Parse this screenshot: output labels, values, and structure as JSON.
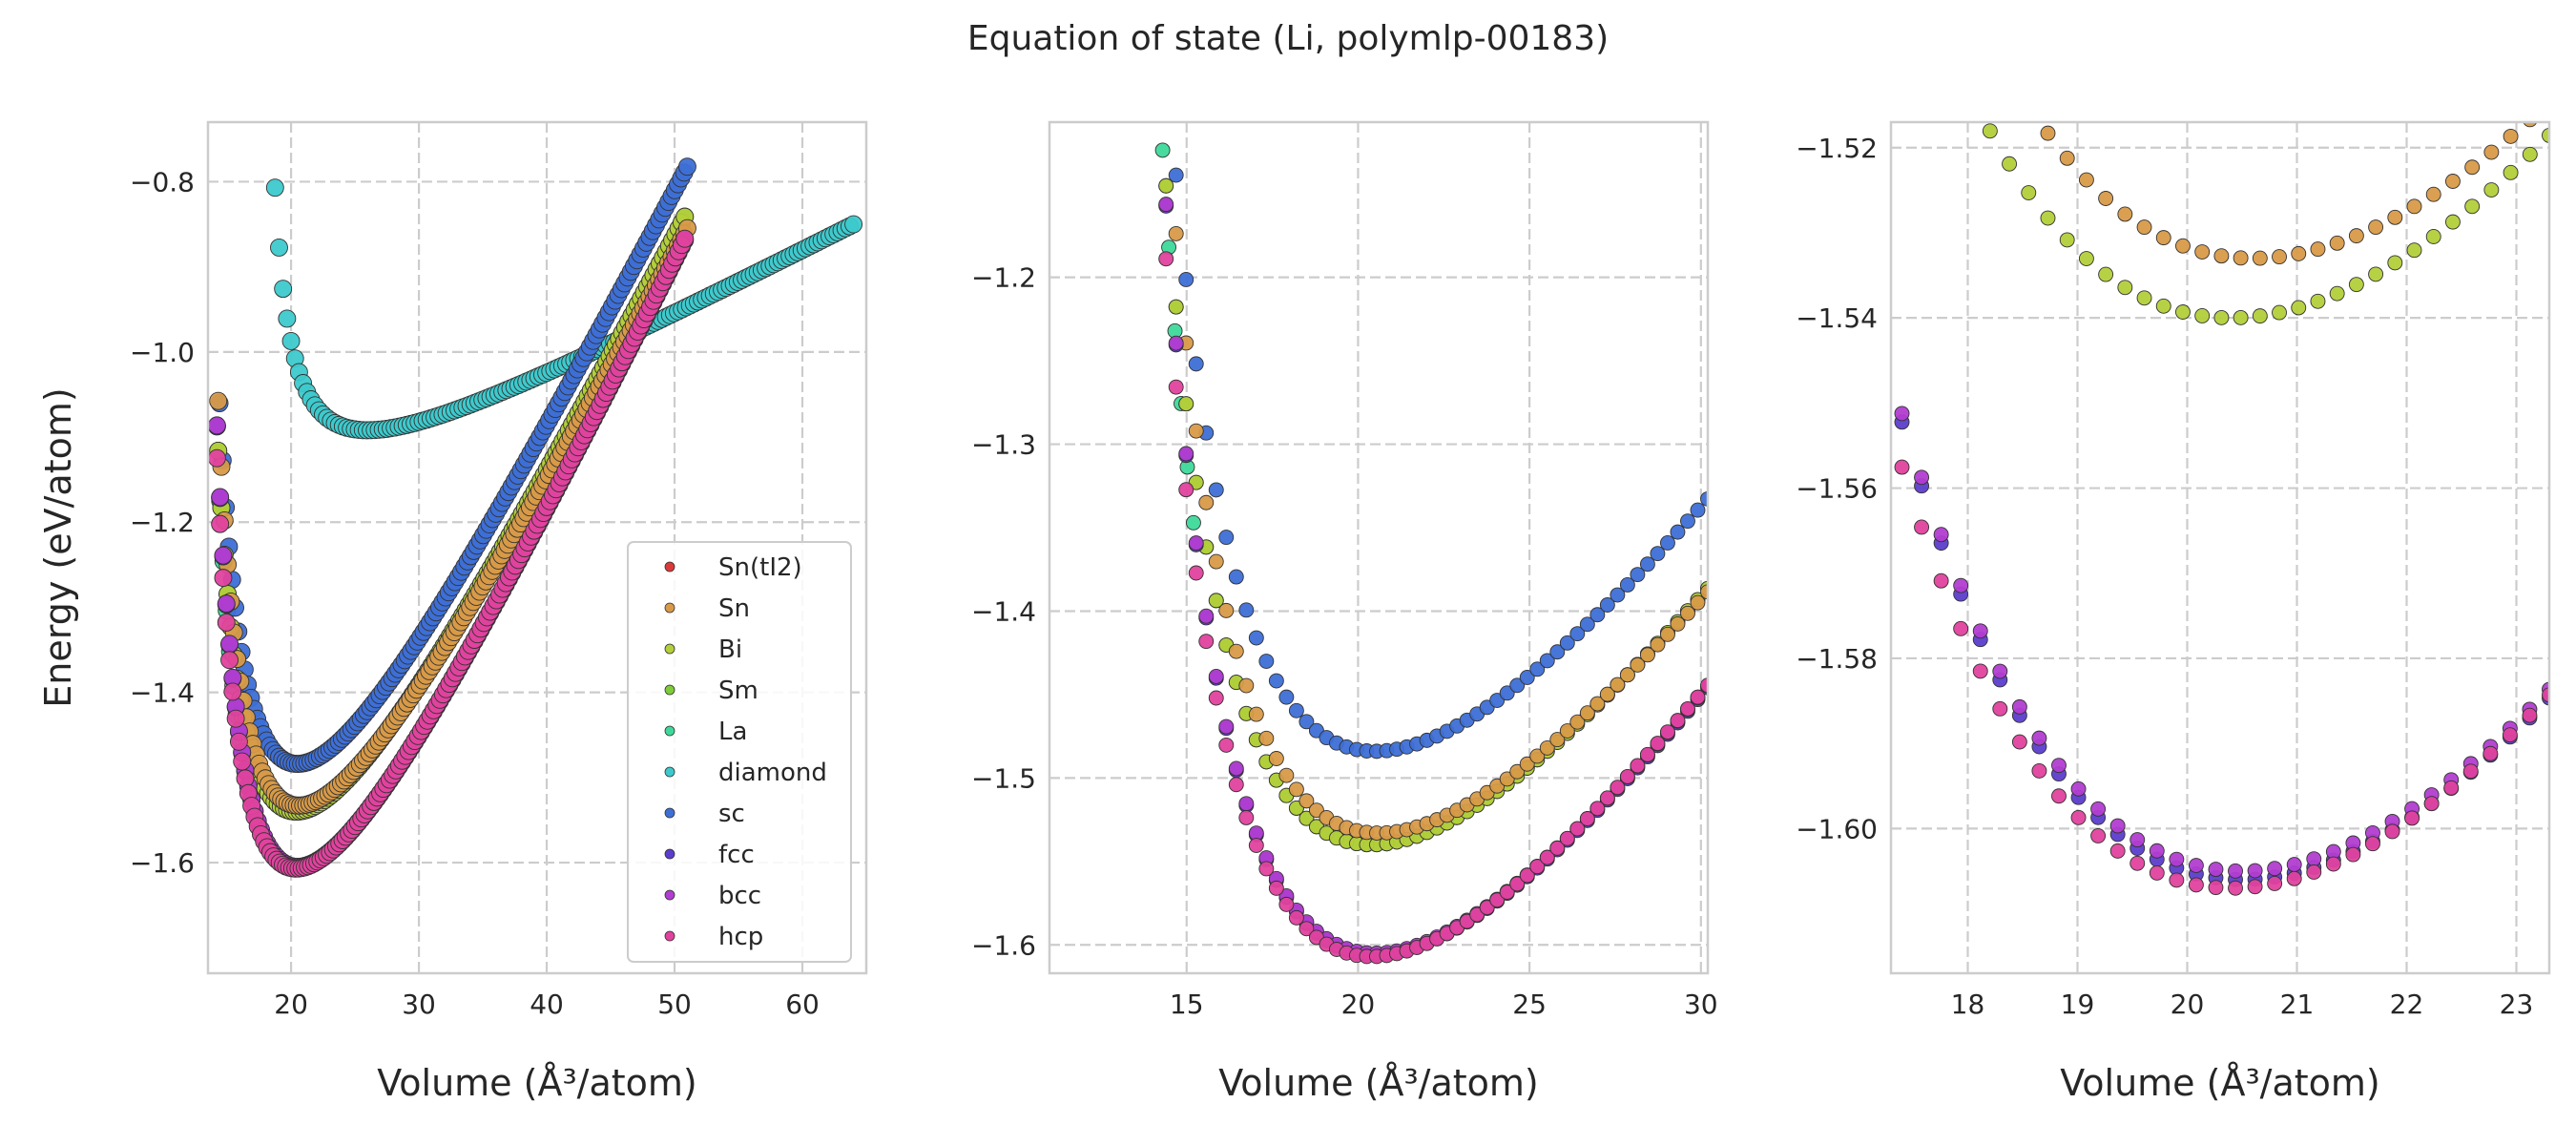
{
  "figure": {
    "title": "Equation of state (Li, polymlp-00183)"
  },
  "colors": {
    "Sn(tI2)": "#db3a3a",
    "Sn": "#d89a48",
    "Bi": "#b3cf3a",
    "Sm": "#7fcc3a",
    "La": "#3ed99a",
    "diamond": "#3dc9cc",
    "sc": "#3d6fd6",
    "fcc": "#5c3dcc",
    "bcc": "#b23dd1",
    "hcp": "#e0429e"
  },
  "chart_data": [
    {
      "type": "scatter",
      "xlabel": "Volume (Å³/atom)",
      "ylabel": "Energy (eV/atom)",
      "xlim": [
        13.5,
        65
      ],
      "ylim": [
        -1.73,
        -0.73
      ],
      "xticks": [
        20,
        30,
        40,
        50,
        60
      ],
      "yticks": [
        -1.6,
        -1.4,
        -1.2,
        -1.0,
        -0.8
      ],
      "grid": true,
      "legend": "lower-right",
      "legend_entries": [
        "Sn(tI2)",
        "Sn",
        "Bi",
        "Sm",
        "La",
        "diamond",
        "sc",
        "fcc",
        "bcc",
        "hcp"
      ],
      "curves": [
        {
          "name": "Sn(tI2)",
          "v0": 20.5,
          "e0": -1.606,
          "b": 0.0036,
          "vmin": 14.2,
          "vmax": 50.8,
          "n": 150,
          "hidden": true
        },
        {
          "name": "La",
          "v0": 20.5,
          "e0": -1.606,
          "b": 0.0036,
          "vmin": 14.2,
          "vmax": 16.0,
          "n": 8
        },
        {
          "name": "diamond",
          "v0": 26.0,
          "e0": -1.092,
          "b": 0.0009,
          "vmin": 17.5,
          "vmax": 64.0,
          "n": 150
        },
        {
          "name": "sc",
          "v0": 20.5,
          "e0": -1.484,
          "b": 0.0034,
          "vmin": 14.4,
          "vmax": 51.0,
          "n": 150
        },
        {
          "name": "Sm",
          "v0": 20.4,
          "e0": -1.54,
          "b": 0.0034,
          "vmin": 14.3,
          "vmax": 50.8,
          "n": 150
        },
        {
          "name": "Bi",
          "v0": 20.4,
          "e0": -1.54,
          "b": 0.0034,
          "vmin": 14.3,
          "vmax": 50.8,
          "n": 150
        },
        {
          "name": "Sn",
          "v0": 20.6,
          "e0": -1.533,
          "b": 0.0033,
          "vmin": 14.3,
          "vmax": 51.0,
          "n": 150
        },
        {
          "name": "fcc",
          "v0": 20.5,
          "e0": -1.606,
          "b": 0.0036,
          "vmin": 14.2,
          "vmax": 50.8,
          "n": 150
        },
        {
          "name": "bcc",
          "v0": 20.5,
          "e0": -1.605,
          "b": 0.0036,
          "vmin": 14.2,
          "vmax": 50.8,
          "n": 150
        },
        {
          "name": "hcp",
          "v0": 20.4,
          "e0": -1.607,
          "b": 0.0036,
          "vmin": 14.2,
          "vmax": 50.8,
          "n": 150
        }
      ]
    },
    {
      "type": "scatter",
      "xlabel": "Volume (Å³/atom)",
      "ylabel": "",
      "xlim": [
        11.0,
        30.2
      ],
      "ylim": [
        -1.617,
        -1.107
      ],
      "xticks": [
        15,
        20,
        25,
        30
      ],
      "yticks": [
        -1.6,
        -1.5,
        -1.4,
        -1.3,
        -1.2
      ],
      "grid": true,
      "curves": [
        {
          "name": "La",
          "v0": 20.5,
          "e0": -1.606,
          "b": 0.0036,
          "vmin": 14.3,
          "vmax": 15.2,
          "n": 6
        },
        {
          "name": "sc",
          "v0": 20.5,
          "e0": -1.484,
          "b": 0.0034,
          "vmin": 14.4,
          "vmax": 30.2,
          "n": 55
        },
        {
          "name": "Sm",
          "v0": 20.4,
          "e0": -1.54,
          "b": 0.0034,
          "vmin": 14.4,
          "vmax": 30.2,
          "n": 55
        },
        {
          "name": "Bi",
          "v0": 20.4,
          "e0": -1.54,
          "b": 0.0034,
          "vmin": 14.4,
          "vmax": 30.2,
          "n": 55
        },
        {
          "name": "Sn",
          "v0": 20.6,
          "e0": -1.533,
          "b": 0.0033,
          "vmin": 14.4,
          "vmax": 30.2,
          "n": 55
        },
        {
          "name": "fcc",
          "v0": 20.5,
          "e0": -1.606,
          "b": 0.0036,
          "vmin": 14.4,
          "vmax": 30.2,
          "n": 55
        },
        {
          "name": "bcc",
          "v0": 20.5,
          "e0": -1.605,
          "b": 0.0036,
          "vmin": 14.4,
          "vmax": 30.2,
          "n": 55
        },
        {
          "name": "hcp",
          "v0": 20.4,
          "e0": -1.607,
          "b": 0.0036,
          "vmin": 14.4,
          "vmax": 30.2,
          "n": 55
        }
      ]
    },
    {
      "type": "scatter",
      "xlabel": "Volume (Å³/atom)",
      "ylabel": "",
      "xlim": [
        17.3,
        23.3
      ],
      "ylim": [
        -1.617,
        -1.517
      ],
      "xticks": [
        18,
        19,
        20,
        21,
        22,
        23
      ],
      "yticks": [
        -1.6,
        -1.58,
        -1.56,
        -1.54,
        -1.52
      ],
      "ytick_labels": [
        "−1.60",
        "−1.58",
        "−1.56",
        "−1.54",
        "−1.52"
      ],
      "grid": true,
      "curves": [
        {
          "name": "Sn",
          "v0": 20.6,
          "e0": -1.533,
          "b": 0.0033,
          "vmin": 17.5,
          "vmax": 23.3,
          "n": 34
        },
        {
          "name": "Bi",
          "v0": 20.4,
          "e0": -1.54,
          "b": 0.0034,
          "vmin": 17.5,
          "vmax": 23.3,
          "n": 34
        },
        {
          "name": "fcc",
          "v0": 20.5,
          "e0": -1.606,
          "b": 0.0036,
          "vmin": 17.4,
          "vmax": 23.3,
          "n": 34
        },
        {
          "name": "bcc",
          "v0": 20.5,
          "e0": -1.605,
          "b": 0.0036,
          "vmin": 17.4,
          "vmax": 23.3,
          "n": 34
        },
        {
          "name": "hcp",
          "v0": 20.4,
          "e0": -1.607,
          "b": 0.0036,
          "vmin": 17.4,
          "vmax": 23.3,
          "n": 34
        }
      ]
    }
  ]
}
